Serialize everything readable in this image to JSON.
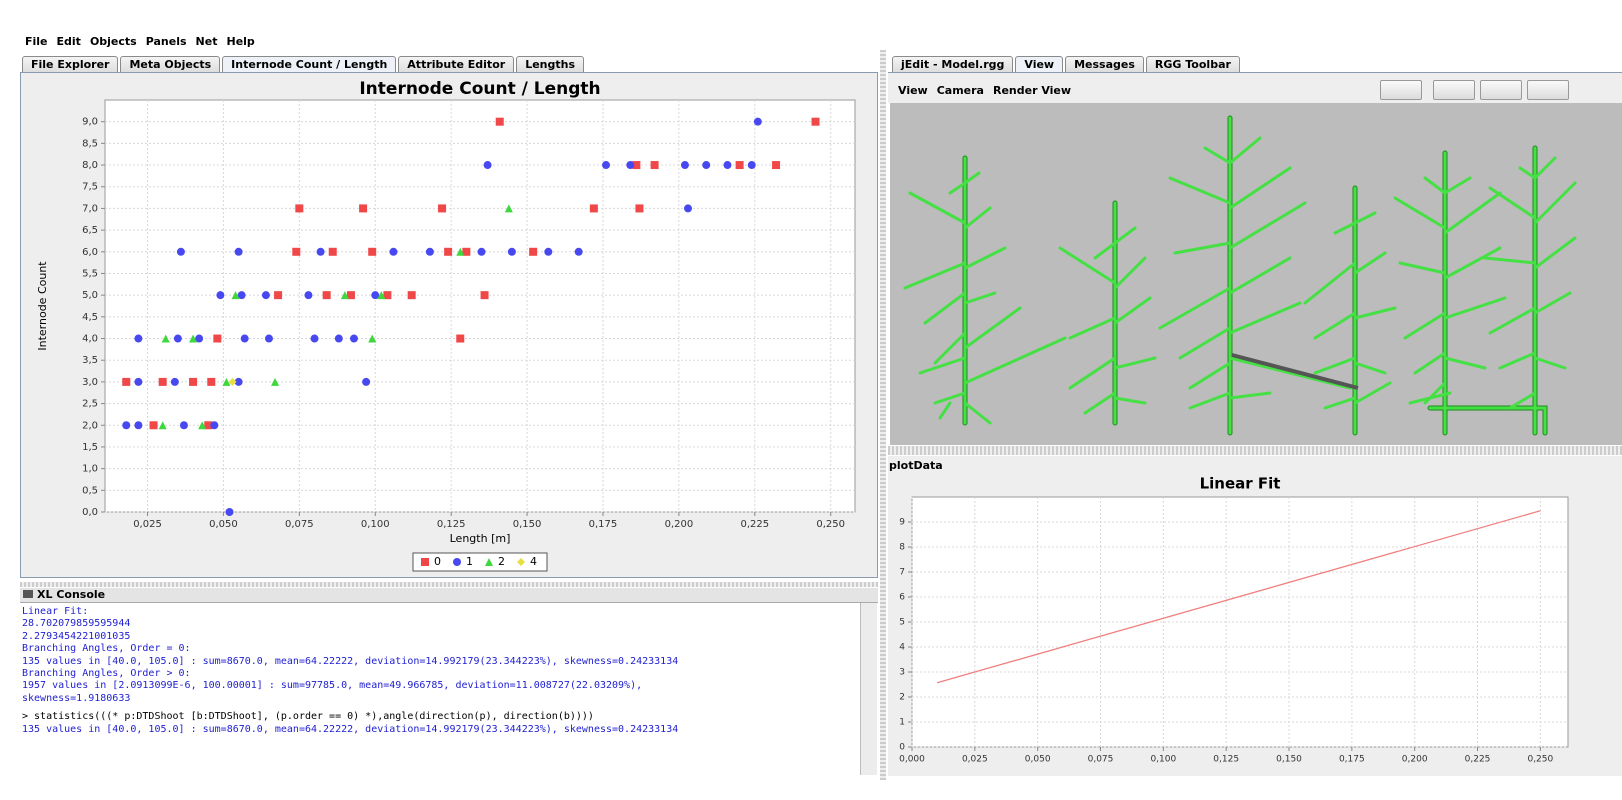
{
  "menu": [
    "File",
    "Edit",
    "Objects",
    "Panels",
    "Net",
    "Help"
  ],
  "left_tabs": [
    "File Explorer",
    "Meta Objects",
    "Internode Count / Length",
    "Attribute Editor",
    "Lengths"
  ],
  "right_tabs": [
    "jEdit - Model.rgg",
    "View",
    "Messages",
    "RGG Toolbar"
  ],
  "view_menu": [
    "View",
    "Camera",
    "Render View"
  ],
  "plot_panel_label": "plotData",
  "console": {
    "title": "XL Console",
    "lines": [
      "Linear Fit:",
      "28.702079859595944",
      "2.2793454221001035",
      "Branching Angles, Order = 0:",
      "135 values in [40.0, 105.0] : sum=8670.0, mean=64.22222, deviation=14.992179(23.344223%), skewness=0.24233134",
      "Branching Angles, Order > 0:",
      "1957 values in [2.0913099E-6, 100.00001] : sum=97785.0, mean=49.966785, deviation=11.008727(22.03209%),",
      "skewness=1.9180633"
    ],
    "command": "> statistics(((* p:DTDShoot [b:DTDShoot], (p.order == 0) *),angle(direction(p), direction(b))))",
    "result": "135 values in [40.0, 105.0] : sum=8670.0, mean=64.22222, deviation=14.992179(23.344223%), skewness=0.24233134"
  },
  "chart_data": [
    {
      "type": "scatter",
      "title": "Internode Count / Length",
      "x_label": "Length [m]",
      "y_label": "Internode Count",
      "xlim": [
        0.011,
        0.258
      ],
      "ylim": [
        0,
        9.5
      ],
      "grid": true,
      "legend": "bottom",
      "xticks": [
        {
          "value": 0.025,
          "label": "0,025"
        },
        {
          "value": 0.05,
          "label": "0,050"
        },
        {
          "value": 0.075,
          "label": "0,075"
        },
        {
          "value": 0.1,
          "label": "0,100"
        },
        {
          "value": 0.125,
          "label": "0,125"
        },
        {
          "value": 0.15,
          "label": "0,150"
        },
        {
          "value": 0.175,
          "label": "0,175"
        },
        {
          "value": 0.2,
          "label": "0,200"
        },
        {
          "value": 0.225,
          "label": "0,225"
        },
        {
          "value": 0.25,
          "label": "0,250"
        }
      ],
      "yticks": [
        {
          "value": 0,
          "label": "0,0"
        },
        {
          "value": 0.5,
          "label": "0,5"
        },
        {
          "value": 1,
          "label": "1,0"
        },
        {
          "value": 1.5,
          "label": "1,5"
        },
        {
          "value": 2,
          "label": "2,0"
        },
        {
          "value": 2.5,
          "label": "2,5"
        },
        {
          "value": 3,
          "label": "3,0"
        },
        {
          "value": 3.5,
          "label": "3,5"
        },
        {
          "value": 4,
          "label": "4,0"
        },
        {
          "value": 4.5,
          "label": "4,5"
        },
        {
          "value": 5,
          "label": "5,0"
        },
        {
          "value": 5.5,
          "label": "5,5"
        },
        {
          "value": 6,
          "label": "6,0"
        },
        {
          "value": 6.5,
          "label": "6,5"
        },
        {
          "value": 7,
          "label": "7,0"
        },
        {
          "value": 7.5,
          "label": "7,5"
        },
        {
          "value": 8,
          "label": "8,0"
        },
        {
          "value": 8.5,
          "label": "8,5"
        },
        {
          "value": 9,
          "label": "9,0"
        }
      ],
      "series": [
        {
          "name": "0",
          "color": "#f04848",
          "marker": "square",
          "x": [
            0.141,
            0.245,
            0.186,
            0.192,
            0.22,
            0.232,
            0.075,
            0.096,
            0.122,
            0.172,
            0.187,
            0.074,
            0.086,
            0.099,
            0.124,
            0.13,
            0.152,
            0.068,
            0.084,
            0.092,
            0.104,
            0.112,
            0.136,
            0.048,
            0.128,
            0.018,
            0.03,
            0.04,
            0.046,
            0.027,
            0.045
          ],
          "values": [
            9,
            9,
            8,
            8,
            8,
            8,
            7,
            7,
            7,
            7,
            7,
            6,
            6,
            6,
            6,
            6,
            6,
            5,
            5,
            5,
            5,
            5,
            5,
            4,
            4,
            3,
            3,
            3,
            3,
            2,
            2
          ]
        },
        {
          "name": "1",
          "color": "#4848f0",
          "marker": "circle",
          "x": [
            0.226,
            0.137,
            0.176,
            0.184,
            0.202,
            0.209,
            0.216,
            0.224,
            0.203,
            0.036,
            0.055,
            0.082,
            0.106,
            0.118,
            0.135,
            0.145,
            0.157,
            0.167,
            0.049,
            0.056,
            0.064,
            0.078,
            0.1,
            0.022,
            0.035,
            0.042,
            0.057,
            0.065,
            0.08,
            0.088,
            0.093,
            0.097,
            0.022,
            0.034,
            0.055,
            0.018,
            0.022,
            0.037,
            0.047,
            0.052
          ],
          "values": [
            9,
            8,
            8,
            8,
            8,
            8,
            8,
            8,
            7,
            6,
            6,
            6,
            6,
            6,
            6,
            6,
            6,
            6,
            5,
            5,
            5,
            5,
            5,
            4,
            4,
            4,
            4,
            4,
            4,
            4,
            4,
            3,
            3,
            3,
            3,
            2,
            2,
            2,
            2,
            0
          ]
        },
        {
          "name": "2",
          "color": "#3ed83e",
          "marker": "triangle",
          "x": [
            0.144,
            0.128,
            0.054,
            0.09,
            0.102,
            0.031,
            0.04,
            0.099,
            0.051,
            0.067,
            0.03,
            0.043
          ],
          "values": [
            7,
            6,
            5,
            5,
            5,
            4,
            4,
            4,
            3,
            3,
            2,
            2
          ]
        },
        {
          "name": "4",
          "color": "#e8e040",
          "marker": "diamond",
          "x": [
            0.053
          ],
          "values": [
            3
          ]
        }
      ]
    },
    {
      "type": "line",
      "title": "Linear Fit",
      "xlim": [
        0,
        0.261
      ],
      "ylim": [
        0,
        10
      ],
      "grid": true,
      "xticks": [
        {
          "value": 0,
          "label": "0,000"
        },
        {
          "value": 0.025,
          "label": "0,025"
        },
        {
          "value": 0.05,
          "label": "0,050"
        },
        {
          "value": 0.075,
          "label": "0,075"
        },
        {
          "value": 0.1,
          "label": "0,100"
        },
        {
          "value": 0.125,
          "label": "0,125"
        },
        {
          "value": 0.15,
          "label": "0,150"
        },
        {
          "value": 0.175,
          "label": "0,175"
        },
        {
          "value": 0.2,
          "label": "0,200"
        },
        {
          "value": 0.225,
          "label": "0,225"
        },
        {
          "value": 0.25,
          "label": "0,250"
        }
      ],
      "yticks": [
        0,
        1,
        2,
        3,
        4,
        5,
        6,
        7,
        8,
        9
      ],
      "x": [
        0.01,
        0.25
      ],
      "series": [
        {
          "color": "#f08080",
          "values": [
            2.57,
            9.45
          ]
        }
      ]
    }
  ]
}
